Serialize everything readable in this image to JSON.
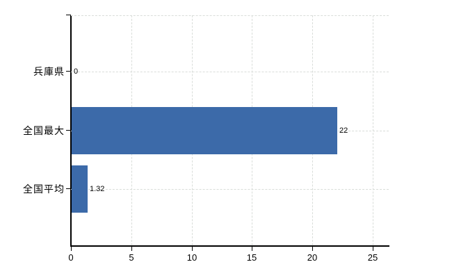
{
  "chart_data": {
    "type": "bar",
    "orientation": "horizontal",
    "title": "",
    "xlabel": "",
    "ylabel": "",
    "categories": [
      "兵庫県",
      "全国最大",
      "全国平均"
    ],
    "values": [
      0,
      22,
      1.32
    ],
    "value_labels": [
      "0",
      "22",
      "1.32"
    ],
    "xlim": [
      0,
      25
    ],
    "x_ticks": [
      0,
      5,
      10,
      15,
      20,
      25
    ],
    "x_tick_labels": [
      "0",
      "5",
      "10",
      "15",
      "20",
      "25"
    ],
    "legend": "none",
    "grid": "dashed",
    "colors": {
      "bar": "#3c6aa9",
      "grid": "#d9ddd9",
      "axis": "#000000",
      "text": "#000000",
      "background": "#ffffff"
    }
  }
}
